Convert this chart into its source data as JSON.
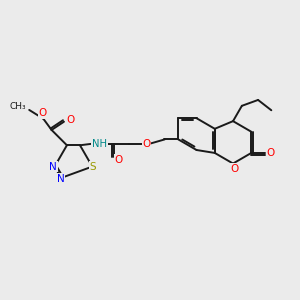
{
  "background_color": "#ebebeb",
  "bond_color": "#1a1a1a",
  "N_color": "#0000ff",
  "S_color": "#999900",
  "O_color": "#ff0000",
  "NH_color": "#008888",
  "figsize": [
    3.0,
    3.0
  ],
  "dpi": 100,
  "xlim": [
    0,
    10
  ],
  "ylim": [
    0,
    10
  ]
}
